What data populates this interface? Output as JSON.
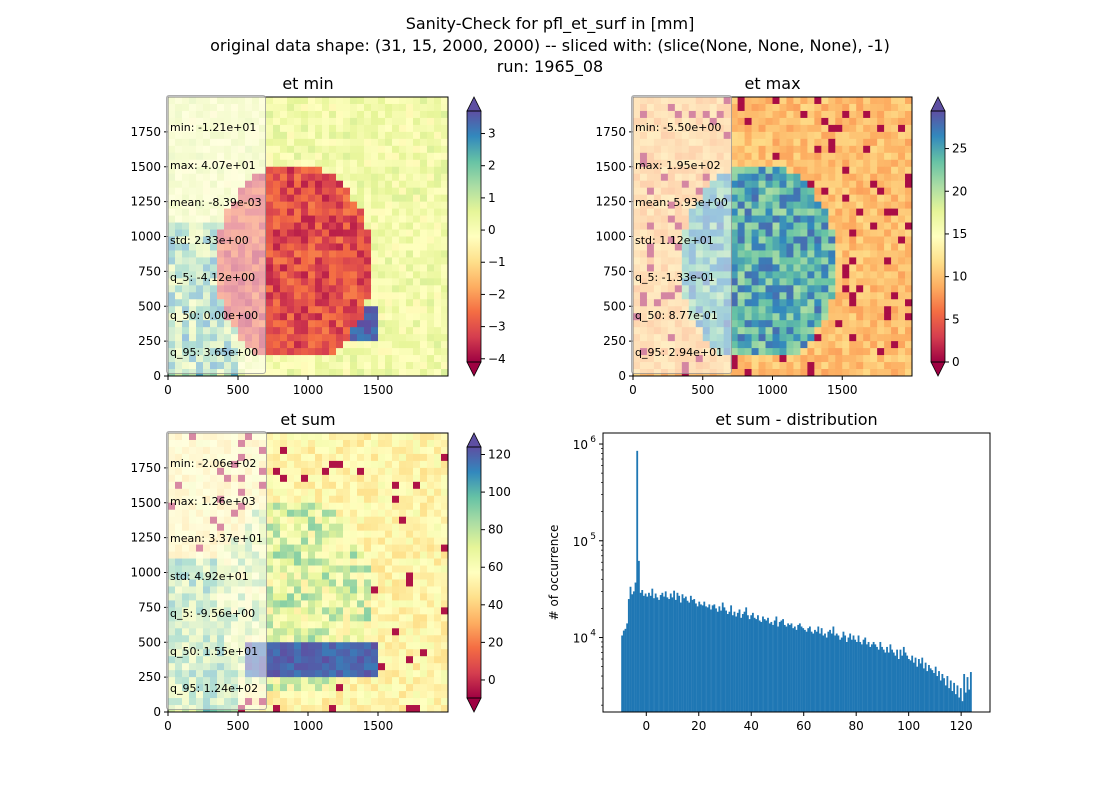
{
  "suptitle": {
    "line1": "Sanity-Check for pfl_et_surf in [mm]",
    "line2": "original data shape: (31, 15, 2000, 2000) -- sliced with: (slice(None, None, None), -1)",
    "line3": "run: 1965_08"
  },
  "colormap": "Spectral",
  "colors": {
    "cmap_stops": [
      "#9e0142",
      "#d53e4f",
      "#f46d43",
      "#fdae61",
      "#fee08b",
      "#ffffbf",
      "#e6f598",
      "#abdda4",
      "#66c2a5",
      "#3288bd",
      "#5e4fa2"
    ],
    "hist_bar": "#1f77b4"
  },
  "panels": [
    {
      "title": "et min",
      "xticks": [
        "0",
        "500",
        "1000",
        "1500"
      ],
      "yticks": [
        "0",
        "250",
        "500",
        "750",
        "1000",
        "1250",
        "1500",
        "1750"
      ],
      "colorbar": {
        "vmin": -4.1,
        "vmax": 3.7,
        "ticks": [
          -4,
          -3,
          -2,
          -1,
          0,
          1,
          2,
          3
        ],
        "tick_labels": [
          "−4",
          "−3",
          "−2",
          "−1",
          "0",
          "1",
          "2",
          "3"
        ],
        "extend": "both"
      },
      "stats": [
        "min: -1.21e+01",
        "max: 4.07e+01",
        "mean: -8.39e-03",
        "std: 2.33e+00",
        "q_5: -4.12e+00",
        "q_50: 0.00e+00",
        "q_95: 3.65e+00"
      ]
    },
    {
      "title": "et max",
      "xticks": [
        "0",
        "500",
        "1000",
        "1500"
      ],
      "yticks": [
        "0",
        "250",
        "500",
        "750",
        "1000",
        "1250",
        "1500",
        "1750"
      ],
      "colorbar": {
        "vmin": 0,
        "vmax": 29.4,
        "ticks": [
          0,
          5,
          10,
          15,
          20,
          25
        ],
        "tick_labels": [
          "0",
          "5",
          "10",
          "15",
          "20",
          "25"
        ],
        "extend": "both"
      },
      "stats": [
        "min: -5.50e+00",
        "max: 1.95e+02",
        "mean: 5.93e+00",
        "std: 1.12e+01",
        "q_5: -1.33e-01",
        "q_50: 8.77e-01",
        "q_95: 2.94e+01"
      ]
    },
    {
      "title": "et sum",
      "xticks": [
        "0",
        "500",
        "1000",
        "1500"
      ],
      "yticks": [
        "0",
        "250",
        "500",
        "750",
        "1000",
        "1250",
        "1500",
        "1750"
      ],
      "colorbar": {
        "vmin": -9.6,
        "vmax": 124,
        "ticks": [
          0,
          20,
          40,
          60,
          80,
          100,
          120
        ],
        "tick_labels": [
          "0",
          "20",
          "40",
          "60",
          "80",
          "100",
          "120"
        ],
        "extend": "both"
      },
      "stats": [
        "min: -2.06e+02",
        "max: 1.26e+03",
        "mean: 3.37e+01",
        "std: 4.92e+01",
        "q_5: -9.56e+00",
        "q_50: 1.55e+01",
        "q_95: 1.24e+02"
      ]
    }
  ],
  "chart_data": {
    "type": "bar",
    "title": "et sum - distribution",
    "xlabel": "",
    "ylabel": "# of occurrence",
    "yscale": "log",
    "xlim": [
      -16.5,
      131
    ],
    "ylim": [
      1700,
      1300000
    ],
    "xticks": [
      0,
      20,
      40,
      60,
      80,
      100,
      120
    ],
    "yticks": [
      {
        "value": 10000,
        "label": "10",
        "exp": "4"
      },
      {
        "value": 100000,
        "label": "10",
        "exp": "5"
      },
      {
        "value": 1000000,
        "label": "10",
        "exp": "6"
      }
    ],
    "bin_start": -9.56,
    "bin_end": 124.0,
    "values": [
      10500,
      11800,
      12300,
      14000,
      25000,
      33500,
      28000,
      30000,
      37000,
      850000,
      62000,
      29000,
      31000,
      27000,
      28500,
      26500,
      29000,
      27000,
      32000,
      25500,
      28500,
      26000,
      24500,
      27500,
      29000,
      26500,
      30000,
      26000,
      25000,
      28500,
      26000,
      30500,
      24500,
      29000,
      27000,
      23000,
      28000,
      25500,
      26500,
      24000,
      23000,
      27000,
      24500,
      25000,
      22500,
      21000,
      23500,
      22000,
      21500,
      23500,
      21000,
      20500,
      22000,
      19500,
      21500,
      22000,
      20000,
      18500,
      21000,
      19000,
      23000,
      20500,
      19000,
      17500,
      18500,
      21500,
      17000,
      18500,
      16500,
      18000,
      19500,
      16000,
      17500,
      18500,
      20500,
      17000,
      15500,
      17000,
      18000,
      16000,
      15500,
      17000,
      15000,
      14500,
      16500,
      15500,
      15000,
      16000,
      14000,
      14500,
      13500,
      15000,
      16500,
      13000,
      14500,
      15000,
      15500,
      13500,
      13000,
      14000,
      13500,
      14000,
      12500,
      13000,
      12000,
      13500,
      14000,
      13000,
      12500,
      12000,
      11500,
      12500,
      13000,
      11500,
      11000,
      12000,
      11500,
      13000,
      11000,
      12500,
      10500,
      11000,
      10000,
      11500,
      12000,
      11000,
      13000,
      10500,
      11000,
      10500,
      9500,
      10000,
      11500,
      10500,
      9000,
      10000,
      11000,
      9500,
      10500,
      9500,
      9000,
      10500,
      9000,
      8500,
      9500,
      10000,
      8500,
      9000,
      8000,
      8500,
      9000,
      8500,
      8000,
      7500,
      9000,
      8000,
      7500,
      7000,
      8000,
      7000,
      8500,
      7500,
      7000,
      6500,
      7500,
      6000,
      7500,
      6500,
      8000,
      7000,
      6500,
      6000,
      5800,
      6500,
      5500,
      6200,
      5000,
      6000,
      5400,
      6200,
      4800,
      5500,
      4500,
      5200,
      4800,
      4600,
      4300,
      5000,
      4000,
      4500,
      3600,
      4200,
      3800,
      3200,
      4000,
      3000,
      3600,
      2800,
      3400,
      2600,
      3200,
      2400,
      3000,
      2200,
      4200,
      2700,
      3900,
      2900,
      4400
    ]
  }
}
